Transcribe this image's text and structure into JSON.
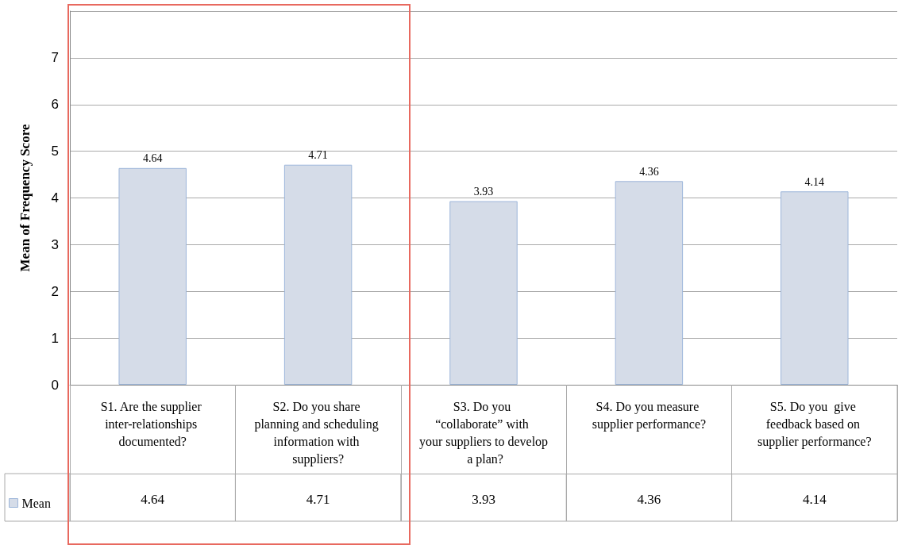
{
  "chart_data": {
    "type": "bar",
    "ylabel": "Mean of Frequency Score",
    "categories": [
      "S1. Are the supplier inter-relationships documented?",
      "S2. Do you share planning and scheduling information with suppliers?",
      "S3. Do you “collaborate” with your suppliers to develop a plan?",
      "S4. Do you measure supplier performance?",
      "S5. Do you  give feedback based on supplier performance?"
    ],
    "series": [
      {
        "name": "Mean",
        "color": "#d5dce8",
        "values": [
          4.64,
          4.71,
          3.93,
          4.36,
          4.14
        ],
        "value_labels": [
          "4.64",
          "4.71",
          "3.93",
          "4.36",
          "4.14"
        ]
      }
    ],
    "ylim": [
      0,
      8
    ],
    "yticks": [
      0,
      1,
      2,
      3,
      4,
      5,
      6,
      7,
      {
        "value": 8,
        "label": null
      }
    ],
    "grid": "y",
    "legend": "bottom left",
    "data_labels": true
  }
}
